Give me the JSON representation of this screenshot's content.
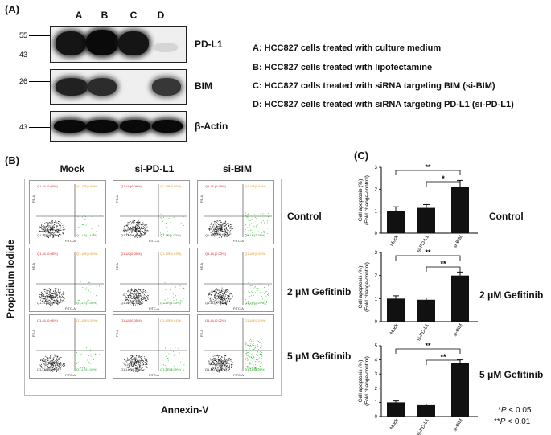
{
  "panel_a": {
    "label": "(A)",
    "lanes": [
      "A",
      "B",
      "C",
      "D"
    ],
    "blots": [
      {
        "name": "PD-L1",
        "markers": [
          "55",
          "43"
        ]
      },
      {
        "name": "BIM",
        "markers": [
          "26"
        ]
      },
      {
        "name": "β-Actin",
        "markers": [
          "43"
        ]
      }
    ],
    "legend": [
      "A: HCC827 cells treated with culture medium",
      "B: HCC827 cells treated with lipofectamine",
      "C: HCC827 cells treated with siRNA targeting BIM (si-BIM)",
      "D: HCC827 cells treated with siRNA targeting PD-L1 (si-PD-L1)"
    ],
    "band_intensity": {
      "PD-L1": [
        0.95,
        1.0,
        0.95,
        0.1
      ],
      "BIM": [
        0.9,
        0.85,
        0.0,
        0.8
      ],
      "β-Actin": [
        1.0,
        1.0,
        1.0,
        1.0
      ]
    }
  },
  "panel_b": {
    "label": "(B)",
    "columns": [
      "Mock",
      "si-PD-L1",
      "si-BIM"
    ],
    "rows": [
      "Control",
      "2 μM Gefitinib",
      "5 μM Gefitinib"
    ],
    "y_axis": "Propidium Iodide",
    "x_axis": "Annexin-V",
    "plot_x_label": "FITC-A",
    "plot_y_label": "PE-A",
    "quadrants": [
      [
        [
          "Q1-UL(0.09%)",
          "Q1-UR(0.06%)",
          "Q1-LL(98.79%)",
          "Q1-LR(1.14%)"
        ],
        [
          "Q1-UL(0.09%)",
          "Q1-UR(0.05%)",
          "Q1-LL(98.84%)",
          "Q1-LR(1.03%)"
        ],
        [
          "Q1-UL(0.09%)",
          "Q1-UR(0.04%)",
          "Q1-LL(97.61%)",
          "Q1-LR(2.26%)"
        ]
      ],
      [
        [
          "Q1-UL(0.05%)",
          "Q1-UR(0.05%)",
          "Q1-LL(98.85%)",
          "Q1-LR(1.05%)"
        ],
        [
          "Q1-UL(0.05%)",
          "Q1-UR(0.03%)",
          "Q1-LL(98.18%)",
          "Q1-LR(1.03%)"
        ],
        [
          "Q1-UL(0.03%)",
          "Q1-UR(0.02%)",
          "Q1-LL(97.74%)",
          "Q1-LR(2.20%)"
        ]
      ],
      [
        [
          "Q1-UL(0.05%)",
          "Q1-UR(0.02%)",
          "Q1-LL(98.89%)",
          "Q1-LR(1.04%)"
        ],
        [
          "Q1-UL(0.05%)",
          "Q1-UR(0.01%)",
          "Q1-LL(98.85%)",
          "Q1-LR(1.09%)"
        ],
        [
          "Q1-UL(0.02%)",
          "Q1-UR(0.03%)",
          "Q1-LL(95.89%)",
          "Q1-LR(4.06%)"
        ]
      ]
    ]
  },
  "panel_c": {
    "label": "(C)",
    "ylabel_line1": "Cell apoptosis (%)",
    "ylabel_line2": "(Fold change-control)",
    "footnote_1": "*P < 0.05",
    "footnote_2": "**P < 0.01",
    "footnote_1_star": "*",
    "footnote_1_rest": " < 0.05",
    "footnote_2_star": "**",
    "footnote_2_rest": " < 0.01",
    "footnote_p": "P"
  },
  "chart_data": [
    {
      "type": "bar",
      "row_label": "Control",
      "categories": [
        "Mock",
        "si-PD-L1",
        "si-BIM"
      ],
      "values": [
        1.0,
        1.15,
        2.1
      ],
      "errors": [
        0.2,
        0.15,
        0.3
      ],
      "ylim": [
        0,
        3
      ],
      "yticks": [
        "0",
        "1",
        "2",
        "3"
      ],
      "ylabel": "Cell apoptosis (%) (Fold change-control)",
      "significance": [
        {
          "from": "Mock",
          "to": "si-BIM",
          "label": "**"
        },
        {
          "from": "si-PD-L1",
          "to": "si-BIM",
          "label": "*"
        }
      ]
    },
    {
      "type": "bar",
      "row_label": "2 μM Gefitinib",
      "categories": [
        "Mock",
        "si-PD-L1",
        "si-BIM"
      ],
      "values": [
        1.0,
        0.95,
        2.0
      ],
      "errors": [
        0.12,
        0.08,
        0.15
      ],
      "ylim": [
        0,
        3
      ],
      "yticks": [
        "0",
        "1",
        "2",
        "3"
      ],
      "ylabel": "Cell apoptosis (%) (Fold change-control)",
      "significance": [
        {
          "from": "Mock",
          "to": "si-BIM",
          "label": "**"
        },
        {
          "from": "si-PD-L1",
          "to": "si-BIM",
          "label": "**"
        }
      ]
    },
    {
      "type": "bar",
      "row_label": "5 μM Gefitinib",
      "categories": [
        "Mock",
        "si-PD-L1",
        "si-BIM"
      ],
      "values": [
        1.0,
        0.8,
        3.75
      ],
      "errors": [
        0.1,
        0.08,
        0.25
      ],
      "ylim": [
        0,
        5
      ],
      "yticks": [
        "0",
        "1",
        "2",
        "3",
        "4",
        "5"
      ],
      "ylabel": "Cell apoptosis (%) (Fold change-control)",
      "significance": [
        {
          "from": "Mock",
          "to": "si-BIM",
          "label": "**"
        },
        {
          "from": "si-PD-L1",
          "to": "si-BIM",
          "label": "**"
        }
      ]
    }
  ]
}
